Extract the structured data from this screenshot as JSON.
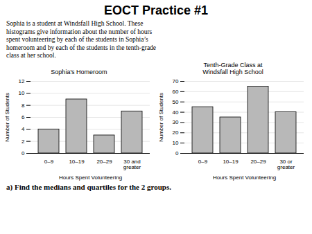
{
  "title": "EOCT Practice #1",
  "subtitle": "Sophia is a student at Windsfall High School. These\nhistograms give information about the number of hours\nspent volunteering by each of the students in Sophia’s\nhomeroom and by each of the students in the tenth-grade\nclass at her school.",
  "annotations": [
    "a) Find the medians and quartiles for the 2 groups."
  ],
  "chart_data": [
    {
      "type": "bar",
      "title": "Sophia's Homeroom",
      "categories": [
        "0–9",
        "10–19",
        "20–29",
        "30 and\ngreater"
      ],
      "values": [
        4,
        9,
        3,
        7
      ],
      "color": "#B8B8B8",
      "xlabel": "Hours Spent Volunteering",
      "ylabel": "Number of Students",
      "ylim": [
        0,
        12
      ],
      "yticks": [
        0,
        2,
        4,
        6,
        8,
        10,
        12
      ],
      "grid": true
    },
    {
      "type": "bar",
      "title": "Tenth-Grade Class at\nWindsfall High School",
      "categories": [
        "0–9",
        "10–19",
        "20–29",
        "30 or\ngreater"
      ],
      "values": [
        45,
        35,
        65,
        40
      ],
      "color": "#B8B8B8",
      "xlabel": "Hours Spent Volunteering",
      "ylabel": "Number of Students",
      "ylim": [
        0,
        70
      ],
      "yticks": [
        0,
        10,
        20,
        30,
        40,
        50,
        60,
        70
      ],
      "grid": true
    }
  ]
}
